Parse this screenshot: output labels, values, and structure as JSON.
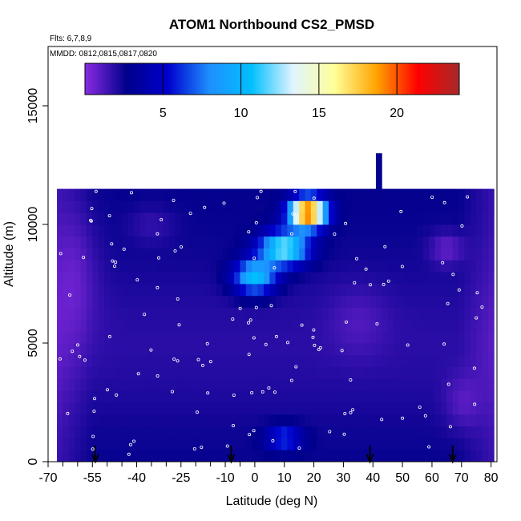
{
  "chart_data": {
    "type": "heatmap",
    "title": "ATOM1 Northbound CS2_PMSD",
    "subtitle_flights": "Flts: 6,7,8,9",
    "subtitle_dates": "MMDD: 0812,0815,0817,0820",
    "xlabel": "Latitude (deg N)",
    "ylabel": "Altitude (m)",
    "xlim": [
      -70,
      82
    ],
    "ylim": [
      0,
      17500
    ],
    "x_ticks": [
      -70,
      -55,
      -40,
      -25,
      -10,
      0,
      10,
      20,
      30,
      40,
      50,
      60,
      70,
      80
    ],
    "x_tick_labels": [
      "-70",
      "-55",
      "-40",
      "-25",
      "-10",
      "0",
      "10",
      "20",
      "30",
      "40",
      "50",
      "60",
      "70",
      "80"
    ],
    "x_minor_ticks": [
      -65,
      -60,
      -50,
      -45,
      -35,
      -30,
      -20,
      -15,
      -5
    ],
    "y_ticks": [
      0,
      5000,
      10000,
      15000
    ],
    "y_tick_labels": [
      "0",
      "5000",
      "10000",
      "15000"
    ],
    "colorbar": {
      "range": [
        0,
        24
      ],
      "ticks": [
        5,
        10,
        15,
        20
      ],
      "tick_labels": [
        "5",
        "10",
        "15",
        "20"
      ],
      "colors": [
        "#8a2be2",
        "#00008b",
        "#0000cd",
        "#1e90ff",
        "#00bfff",
        "#e0f4ff",
        "#ffff99",
        "#ffa500",
        "#ff0000",
        "#a52a2a"
      ]
    },
    "profile_arrows_latitude": [
      -54,
      -8,
      39,
      67
    ],
    "data_extent": {
      "lat_min": -67,
      "lat_max": 81,
      "alt_max": 11500,
      "notch_lat": [
        40,
        42
      ],
      "notch_alt_max": 13000
    },
    "hotspots": [
      {
        "lat": 18,
        "alt": 10500,
        "lat_sd": 6,
        "alt_sd": 600,
        "value": 22
      },
      {
        "lat": 10,
        "alt": 9000,
        "lat_sd": 8,
        "alt_sd": 700,
        "value": 13
      },
      {
        "lat": 0,
        "alt": 7800,
        "lat_sd": 7,
        "alt_sd": 700,
        "value": 11
      },
      {
        "lat": 10,
        "alt": 1000,
        "lat_sd": 6,
        "alt_sd": 500,
        "value": 7
      },
      {
        "lat": -60,
        "alt": 8000,
        "lat_sd": 8,
        "alt_sd": 3000,
        "value": 1.5
      },
      {
        "lat": -35,
        "alt": 10000,
        "lat_sd": 8,
        "alt_sd": 800,
        "value": 1.8
      },
      {
        "lat": 65,
        "alt": 9000,
        "lat_sd": 6,
        "alt_sd": 700,
        "value": 1
      },
      {
        "lat": 70,
        "alt": 2500,
        "lat_sd": 6,
        "alt_sd": 1200,
        "value": 1.5
      },
      {
        "lat": 35,
        "alt": 6000,
        "lat_sd": 10,
        "alt_sd": 1500,
        "value": 1.8
      }
    ],
    "background_value": 2.6
  }
}
